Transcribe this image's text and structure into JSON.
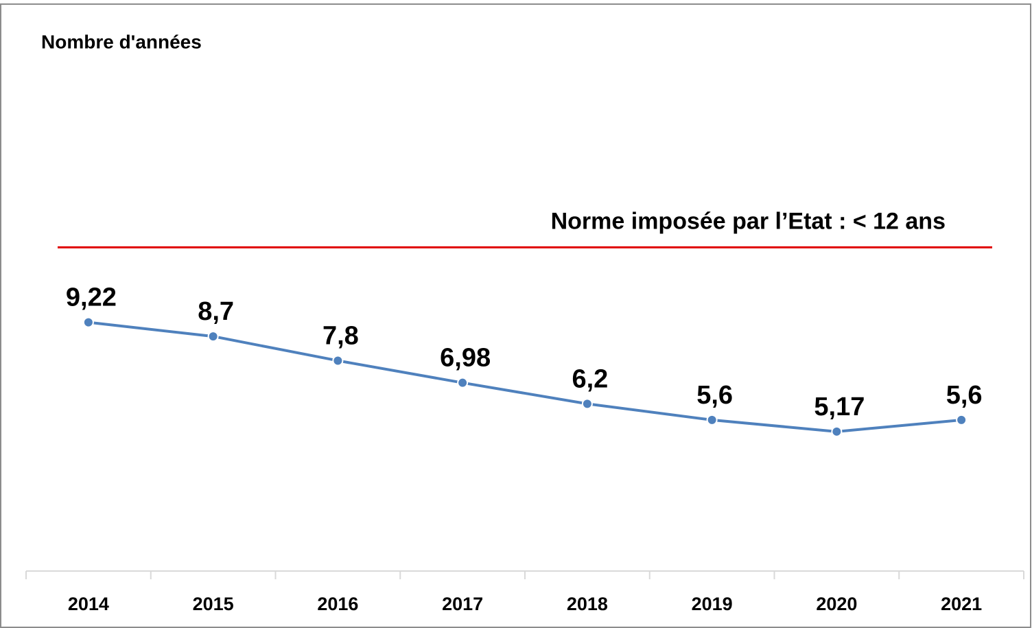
{
  "chart_data": {
    "type": "line",
    "y_label": "Nombre d'années",
    "categories": [
      "2014",
      "2015",
      "2016",
      "2017",
      "2018",
      "2019",
      "2020",
      "2021"
    ],
    "series": [
      {
        "name": "Nombre d'années",
        "color": "#4f81bd",
        "values": [
          9.22,
          8.7,
          7.8,
          6.98,
          6.2,
          5.6,
          5.17,
          5.6
        ],
        "value_labels": [
          "9,22",
          "8,7",
          "7,8",
          "6,98",
          "6,2",
          "5,6",
          "5,17",
          "5,6"
        ]
      }
    ],
    "ylim": [
      0,
      20
    ],
    "reference_line": {
      "value": 12,
      "label": "Norme imposée par l’Etat : < 12 ans",
      "color": "#e00000"
    }
  }
}
